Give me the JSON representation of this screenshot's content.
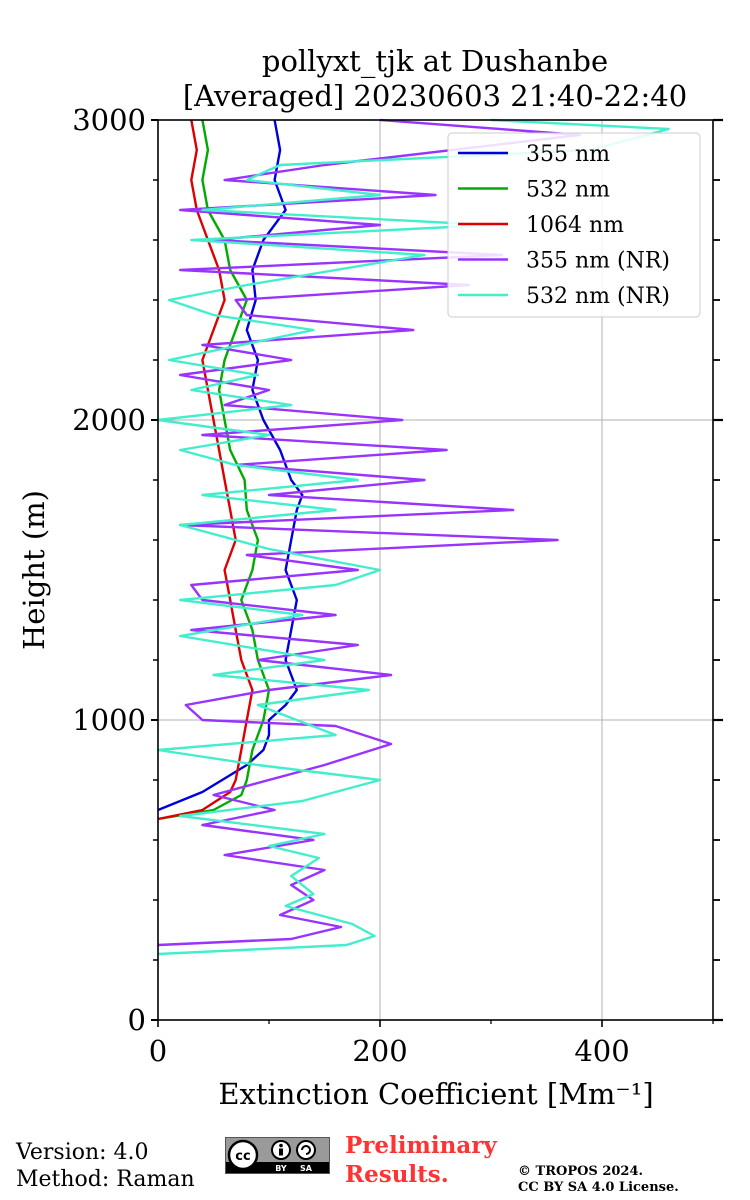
{
  "chart_data": {
    "type": "line",
    "title": "pollyxt_tjk at Dushanbe",
    "subtitle": "[Averaged] 20230603 21:40-22:40",
    "xlabel": "Extinction Coefficient [Mm⁻¹]",
    "ylabel": "Height (m)",
    "xlim": [
      0,
      500
    ],
    "ylim": [
      0,
      3000
    ],
    "xticks": [
      0,
      200,
      400
    ],
    "yticks": [
      0,
      1000,
      2000,
      3000
    ],
    "grid": true,
    "legend_position": "top-right",
    "series": [
      {
        "name": "355 nm",
        "color": "#0000dd",
        "points": [
          [
            0,
            700
          ],
          [
            40,
            760
          ],
          [
            80,
            850
          ],
          [
            95,
            900
          ],
          [
            100,
            950
          ],
          [
            100,
            1000
          ],
          [
            115,
            1050
          ],
          [
            125,
            1100
          ],
          [
            115,
            1200
          ],
          [
            120,
            1300
          ],
          [
            125,
            1400
          ],
          [
            115,
            1500
          ],
          [
            120,
            1600
          ],
          [
            125,
            1700
          ],
          [
            130,
            1750
          ],
          [
            120,
            1800
          ],
          [
            110,
            1900
          ],
          [
            95,
            2000
          ],
          [
            85,
            2100
          ],
          [
            90,
            2200
          ],
          [
            80,
            2300
          ],
          [
            88,
            2400
          ],
          [
            85,
            2500
          ],
          [
            95,
            2600
          ],
          [
            115,
            2700
          ],
          [
            105,
            2800
          ],
          [
            110,
            2900
          ],
          [
            105,
            3000
          ]
        ]
      },
      {
        "name": "532 nm",
        "color": "#00aa00",
        "points": [
          [
            0,
            670
          ],
          [
            50,
            700
          ],
          [
            75,
            750
          ],
          [
            80,
            800
          ],
          [
            85,
            900
          ],
          [
            95,
            1000
          ],
          [
            100,
            1100
          ],
          [
            90,
            1200
          ],
          [
            85,
            1300
          ],
          [
            75,
            1400
          ],
          [
            85,
            1500
          ],
          [
            90,
            1600
          ],
          [
            80,
            1700
          ],
          [
            78,
            1800
          ],
          [
            65,
            1900
          ],
          [
            60,
            2000
          ],
          [
            55,
            2100
          ],
          [
            60,
            2200
          ],
          [
            70,
            2300
          ],
          [
            80,
            2400
          ],
          [
            65,
            2500
          ],
          [
            60,
            2600
          ],
          [
            45,
            2700
          ],
          [
            40,
            2800
          ],
          [
            45,
            2900
          ],
          [
            40,
            3000
          ]
        ]
      },
      {
        "name": "1064 nm",
        "color": "#dd0000",
        "points": [
          [
            0,
            670
          ],
          [
            40,
            700
          ],
          [
            65,
            760
          ],
          [
            70,
            800
          ],
          [
            75,
            900
          ],
          [
            80,
            1000
          ],
          [
            85,
            1100
          ],
          [
            75,
            1200
          ],
          [
            70,
            1300
          ],
          [
            65,
            1400
          ],
          [
            60,
            1500
          ],
          [
            70,
            1600
          ],
          [
            65,
            1700
          ],
          [
            60,
            1800
          ],
          [
            55,
            1900
          ],
          [
            50,
            2000
          ],
          [
            45,
            2100
          ],
          [
            40,
            2200
          ],
          [
            50,
            2300
          ],
          [
            60,
            2400
          ],
          [
            55,
            2500
          ],
          [
            45,
            2600
          ],
          [
            35,
            2700
          ],
          [
            30,
            2800
          ],
          [
            35,
            2900
          ],
          [
            30,
            3000
          ]
        ]
      },
      {
        "name": "355 nm (NR)",
        "color": "#9933ff",
        "points": [
          [
            0,
            250
          ],
          [
            120,
            270
          ],
          [
            165,
            310
          ],
          [
            110,
            350
          ],
          [
            140,
            400
          ],
          [
            120,
            450
          ],
          [
            150,
            500
          ],
          [
            60,
            550
          ],
          [
            140,
            600
          ],
          [
            40,
            650
          ],
          [
            105,
            700
          ],
          [
            50,
            750
          ],
          [
            150,
            850
          ],
          [
            210,
            920
          ],
          [
            160,
            980
          ],
          [
            40,
            1000
          ],
          [
            25,
            1050
          ],
          [
            100,
            1100
          ],
          [
            210,
            1150
          ],
          [
            90,
            1200
          ],
          [
            180,
            1250
          ],
          [
            30,
            1300
          ],
          [
            160,
            1350
          ],
          [
            40,
            1400
          ],
          [
            30,
            1450
          ],
          [
            180,
            1500
          ],
          [
            80,
            1550
          ],
          [
            360,
            1600
          ],
          [
            20,
            1650
          ],
          [
            320,
            1700
          ],
          [
            100,
            1750
          ],
          [
            240,
            1800
          ],
          [
            70,
            1850
          ],
          [
            260,
            1900
          ],
          [
            40,
            1950
          ],
          [
            220,
            2000
          ],
          [
            60,
            2050
          ],
          [
            100,
            2100
          ],
          [
            20,
            2150
          ],
          [
            120,
            2200
          ],
          [
            40,
            2250
          ],
          [
            230,
            2300
          ],
          [
            80,
            2350
          ],
          [
            70,
            2400
          ],
          [
            280,
            2450
          ],
          [
            20,
            2500
          ],
          [
            310,
            2550
          ],
          [
            50,
            2600
          ],
          [
            200,
            2650
          ],
          [
            20,
            2700
          ],
          [
            250,
            2750
          ],
          [
            60,
            2800
          ],
          [
            150,
            2850
          ],
          [
            380,
            2950
          ],
          [
            200,
            3000
          ]
        ]
      },
      {
        "name": "532 nm (NR)",
        "color": "#44eecc",
        "points": [
          [
            0,
            220
          ],
          [
            170,
            250
          ],
          [
            195,
            280
          ],
          [
            175,
            320
          ],
          [
            115,
            380
          ],
          [
            140,
            420
          ],
          [
            120,
            480
          ],
          [
            145,
            540
          ],
          [
            100,
            580
          ],
          [
            150,
            620
          ],
          [
            20,
            680
          ],
          [
            130,
            730
          ],
          [
            200,
            800
          ],
          [
            90,
            850
          ],
          [
            0,
            900
          ],
          [
            160,
            950
          ],
          [
            90,
            1050
          ],
          [
            190,
            1100
          ],
          [
            50,
            1150
          ],
          [
            150,
            1200
          ],
          [
            20,
            1280
          ],
          [
            130,
            1350
          ],
          [
            20,
            1400
          ],
          [
            160,
            1450
          ],
          [
            200,
            1500
          ],
          [
            100,
            1570
          ],
          [
            20,
            1650
          ],
          [
            160,
            1700
          ],
          [
            40,
            1750
          ],
          [
            180,
            1800
          ],
          [
            70,
            1850
          ],
          [
            20,
            1900
          ],
          [
            100,
            1950
          ],
          [
            0,
            2000
          ],
          [
            120,
            2050
          ],
          [
            30,
            2100
          ],
          [
            90,
            2150
          ],
          [
            10,
            2200
          ],
          [
            140,
            2300
          ],
          [
            50,
            2350
          ],
          [
            10,
            2400
          ],
          [
            80,
            2450
          ],
          [
            240,
            2550
          ],
          [
            30,
            2600
          ],
          [
            300,
            2650
          ],
          [
            40,
            2700
          ],
          [
            200,
            2750
          ],
          [
            80,
            2800
          ],
          [
            110,
            2850
          ],
          [
            390,
            2900
          ],
          [
            460,
            2970
          ],
          [
            300,
            3000
          ]
        ]
      }
    ]
  },
  "footer": {
    "version": "Version: 4.0",
    "method": "Method: Raman",
    "cc_label": "cc",
    "cc_by": "BY",
    "cc_sa": "SA",
    "preliminary_line1": "Preliminary",
    "preliminary_line2": "Results.",
    "copyright_line1": "© TROPOS 2024.",
    "copyright_line2": "CC BY SA 4.0 License."
  }
}
